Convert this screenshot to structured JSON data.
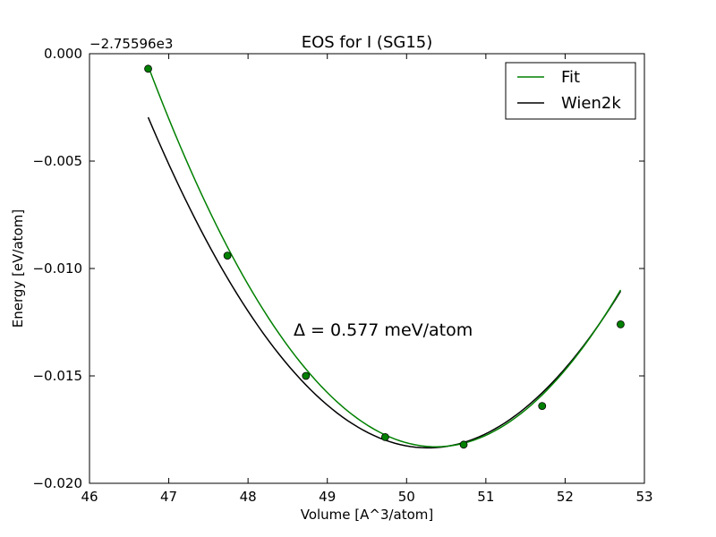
{
  "chart_data": {
    "type": "line",
    "title": "EOS for I (SG15)",
    "xlabel": "Volume [A^3/atom]",
    "ylabel": "Energy [eV/atom]",
    "offset_label": "−2.75596e3",
    "xlim": [
      46,
      53
    ],
    "ylim": [
      -0.02,
      0.0
    ],
    "x_ticks": [
      46,
      47,
      48,
      49,
      50,
      51,
      52,
      53
    ],
    "x_tick_labels": [
      "46",
      "47",
      "48",
      "49",
      "50",
      "51",
      "52",
      "53"
    ],
    "y_ticks": [
      0.0,
      -0.005,
      -0.01,
      -0.015,
      -0.02
    ],
    "y_tick_labels": [
      "0.000",
      "−0.005",
      "−0.010",
      "−0.015",
      "−0.020"
    ],
    "grid": false,
    "legend_position": "top-right",
    "annotation": "Δ = 0.577 meV/atom",
    "series": [
      {
        "name": "Fit",
        "color": "#008000",
        "style": "line",
        "x_range": [
          46.74,
          52.7
        ],
        "fit": {
          "x0": 50.37,
          "e_min": -0.0183,
          "coeff": 0.001345
        }
      },
      {
        "name": "Wien2k",
        "color": "#000000",
        "style": "line",
        "x_range": [
          46.74,
          52.7
        ],
        "fit": {
          "x0": 50.27,
          "e_min": -0.01835,
          "coeff": 0.001235
        }
      }
    ],
    "points": {
      "color": "#008000",
      "x": [
        46.74,
        47.74,
        48.73,
        49.73,
        50.72,
        51.71,
        52.7
      ],
      "y": [
        -0.0007,
        -0.0094,
        -0.015,
        -0.01785,
        -0.0182,
        -0.0164,
        -0.0126
      ]
    }
  }
}
